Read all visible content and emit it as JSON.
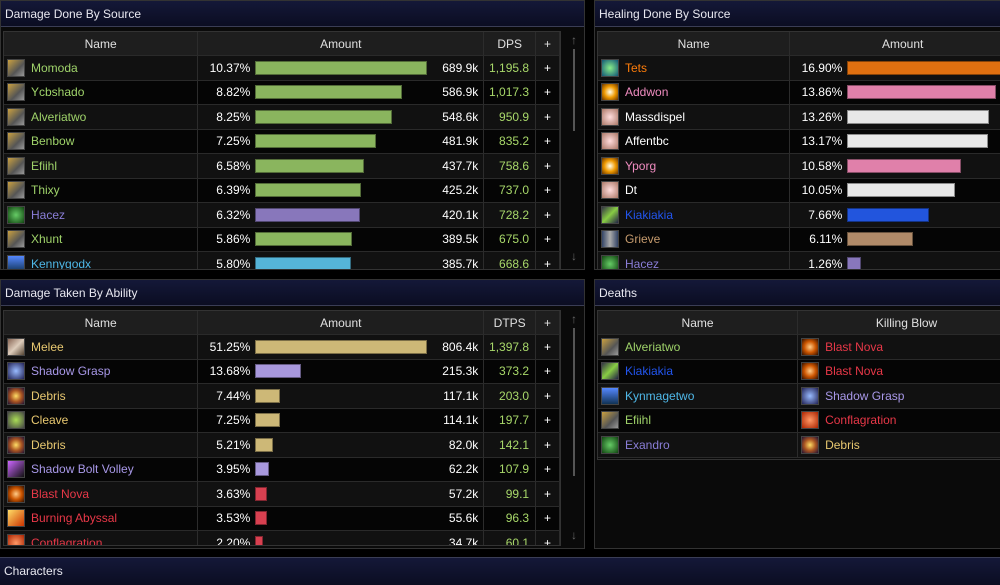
{
  "damage_done": {
    "title": "Damage Done By Source",
    "headers": [
      "Name",
      "Amount",
      "DPS",
      "+"
    ],
    "rows": [
      {
        "name": "Momoda",
        "pct": "10.37%",
        "amount": "689.9k",
        "rate": "1,195.8",
        "color": "#9fd36a",
        "bar": "#8ab55e",
        "icon": "hunter-icon",
        "v": 10.37
      },
      {
        "name": "Ycbshado",
        "pct": "8.82%",
        "amount": "586.9k",
        "rate": "1,017.3",
        "color": "#9fd36a",
        "bar": "#8ab55e",
        "icon": "hunter-icon",
        "v": 8.82
      },
      {
        "name": "Alveriatwo",
        "pct": "8.25%",
        "amount": "548.6k",
        "rate": "950.9",
        "color": "#9fd36a",
        "bar": "#8ab55e",
        "icon": "hunter-icon",
        "v": 8.25
      },
      {
        "name": "Benbow",
        "pct": "7.25%",
        "amount": "481.9k",
        "rate": "835.2",
        "color": "#9fd36a",
        "bar": "#8ab55e",
        "icon": "hunter-icon",
        "v": 7.25
      },
      {
        "name": "Efiihl",
        "pct": "6.58%",
        "amount": "437.7k",
        "rate": "758.6",
        "color": "#9fd36a",
        "bar": "#8ab55e",
        "icon": "hunter-icon",
        "v": 6.58
      },
      {
        "name": "Thixy",
        "pct": "6.39%",
        "amount": "425.2k",
        "rate": "737.0",
        "color": "#9fd36a",
        "bar": "#8ab55e",
        "icon": "hunter-icon",
        "v": 6.39
      },
      {
        "name": "Hacez",
        "pct": "6.32%",
        "amount": "420.1k",
        "rate": "728.2",
        "color": "#8a7ed8",
        "bar": "#8877bb",
        "icon": "warlock-icon",
        "v": 6.32
      },
      {
        "name": "Xhunt",
        "pct": "5.86%",
        "amount": "389.5k",
        "rate": "675.0",
        "color": "#9fd36a",
        "bar": "#8ab55e",
        "icon": "hunter-icon",
        "v": 5.86
      },
      {
        "name": "Kennygodx",
        "pct": "5.80%",
        "amount": "385.7k",
        "rate": "668.6",
        "color": "#4fb8e8",
        "bar": "#55b4d8",
        "icon": "mage-icon",
        "v": 5.8
      }
    ]
  },
  "healing_done": {
    "title": "Healing Done By Source",
    "headers": [
      "Name",
      "Amount"
    ],
    "rows": [
      {
        "name": "Tets",
        "pct": "16.90%",
        "color": "#ff7d0a",
        "bar": "#e07010",
        "icon": "druid-icon",
        "v": 16.9
      },
      {
        "name": "Addwon",
        "pct": "13.86%",
        "color": "#f08cc0",
        "bar": "#e080aa",
        "icon": "paladin-icon",
        "v": 13.86
      },
      {
        "name": "Massdispel",
        "pct": "13.26%",
        "color": "#ffffff",
        "bar": "#e8e8e8",
        "icon": "priest-icon",
        "v": 13.26
      },
      {
        "name": "Affentbc",
        "pct": "13.17%",
        "color": "#ffffff",
        "bar": "#e8e8e8",
        "icon": "priest-icon",
        "v": 13.17
      },
      {
        "name": "Yporg",
        "pct": "10.58%",
        "color": "#f08cc0",
        "bar": "#e080aa",
        "icon": "paladin-icon",
        "v": 10.58
      },
      {
        "name": "Dt",
        "pct": "10.05%",
        "color": "#ffffff",
        "bar": "#e8e8e8",
        "icon": "priest-icon",
        "v": 10.05
      },
      {
        "name": "Kiakiakia",
        "pct": "7.66%",
        "color": "#2255ee",
        "bar": "#2255dd",
        "icon": "shaman-icon",
        "v": 7.66
      },
      {
        "name": "Grieve",
        "pct": "6.11%",
        "color": "#c79c6e",
        "bar": "#b08a68",
        "icon": "warrior-icon",
        "v": 6.11
      },
      {
        "name": "Hacez",
        "pct": "1.26%",
        "color": "#8a7ed8",
        "bar": "#8877bb",
        "icon": "warlock-icon",
        "v": 1.26
      }
    ]
  },
  "damage_taken": {
    "title": "Damage Taken By Ability",
    "headers": [
      "Name",
      "Amount",
      "DTPS",
      "+"
    ],
    "rows": [
      {
        "name": "Melee",
        "pct": "51.25%",
        "amount": "806.4k",
        "rate": "1,397.8",
        "color": "#e8c870",
        "bar": "#cdb877",
        "icon": "melee-icon",
        "v": 51.25
      },
      {
        "name": "Shadow Grasp",
        "pct": "13.68%",
        "amount": "215.3k",
        "rate": "373.2",
        "color": "#a898e8",
        "bar": "#a898dd",
        "icon": "shadow-grasp-icon",
        "v": 13.68
      },
      {
        "name": "Debris",
        "pct": "7.44%",
        "amount": "117.1k",
        "rate": "203.0",
        "color": "#e8c870",
        "bar": "#cdb877",
        "icon": "debris-icon",
        "v": 7.44
      },
      {
        "name": "Cleave",
        "pct": "7.25%",
        "amount": "114.1k",
        "rate": "197.7",
        "color": "#e8c870",
        "bar": "#cdb877",
        "icon": "cleave-icon",
        "v": 7.25
      },
      {
        "name": "Debris",
        "pct": "5.21%",
        "amount": "82.0k",
        "rate": "142.1",
        "color": "#e8c870",
        "bar": "#cdb877",
        "icon": "debris-icon",
        "v": 5.21
      },
      {
        "name": "Shadow Bolt Volley",
        "pct": "3.95%",
        "amount": "62.2k",
        "rate": "107.9",
        "color": "#a898e8",
        "bar": "#a898dd",
        "icon": "shadow-bolt-icon",
        "v": 3.95
      },
      {
        "name": "Blast Nova",
        "pct": "3.63%",
        "amount": "57.2k",
        "rate": "99.1",
        "color": "#e83848",
        "bar": "#d84050",
        "icon": "blast-nova-icon",
        "v": 3.63
      },
      {
        "name": "Burning Abyssal",
        "pct": "3.53%",
        "amount": "55.6k",
        "rate": "96.3",
        "color": "#e83848",
        "bar": "#d84050",
        "icon": "fire-icon",
        "v": 3.53
      },
      {
        "name": "Conflagration",
        "pct": "2.20%",
        "amount": "34.7k",
        "rate": "60.1",
        "color": "#e83848",
        "bar": "#d84050",
        "icon": "conflagration-icon",
        "v": 2.2
      }
    ]
  },
  "deaths": {
    "title": "Deaths",
    "headers": [
      "Name",
      "Killing Blow"
    ],
    "rows": [
      {
        "name": "Alveriatwo",
        "color": "#9fd36a",
        "icon": "hunter-icon",
        "blow": "Blast Nova",
        "blow_color": "#e83848",
        "blow_icon": "blast-nova-icon"
      },
      {
        "name": "Kiakiakia",
        "color": "#2255ee",
        "icon": "shaman-icon",
        "blow": "Blast Nova",
        "blow_color": "#e83848",
        "blow_icon": "blast-nova-icon"
      },
      {
        "name": "Kynmagetwo",
        "color": "#4fb8e8",
        "icon": "mage-icon",
        "blow": "Shadow Grasp",
        "blow_color": "#a898e8",
        "blow_icon": "shadow-grasp-icon"
      },
      {
        "name": "Efiihl",
        "color": "#9fd36a",
        "icon": "hunter-icon",
        "blow": "Conflagration",
        "blow_color": "#e83848",
        "blow_icon": "conflagration-icon"
      },
      {
        "name": "Exandro",
        "color": "#8a7ed8",
        "icon": "warlock-icon",
        "blow": "Debris",
        "blow_color": "#e8c870",
        "blow_icon": "debris-icon"
      }
    ]
  },
  "characters": {
    "title": "Characters"
  }
}
